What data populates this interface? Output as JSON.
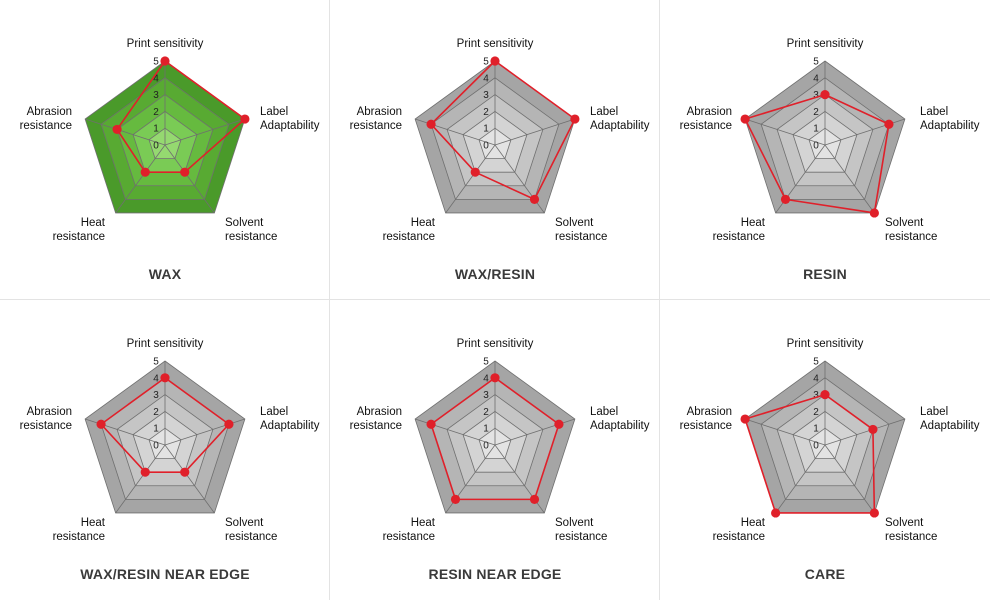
{
  "chart_data": [
    {
      "type": "radar",
      "title": "WAX",
      "axes": [
        "Print sensitivity",
        "Label Adaptability",
        "Solvent resistance",
        "Heat resistance",
        "Abrasion resistance"
      ],
      "ticks": [
        "0",
        "1",
        "2",
        "3",
        "4",
        "5"
      ],
      "rmax": 5,
      "values": [
        5,
        5,
        2,
        2,
        3
      ],
      "fill_colors": [
        "#4a9a2a",
        "#58aa32",
        "#66ba3f",
        "#7acb55",
        "#95d970",
        "#b8e891"
      ],
      "series_color": "#e0202a"
    },
    {
      "type": "radar",
      "title": "WAX/RESIN",
      "axes": [
        "Print sensitivity",
        "Label Adaptability",
        "Solvent resistance",
        "Heat resistance",
        "Abrasion resistance"
      ],
      "ticks": [
        "0",
        "1",
        "2",
        "3",
        "4",
        "5"
      ],
      "rmax": 5,
      "values": [
        5,
        5,
        4,
        2,
        4
      ],
      "fill_colors": [
        "#a5a5a5",
        "#b5b5b5",
        "#c5c5c5",
        "#d4d4d4",
        "#e3e3e3",
        "#f2f2f2"
      ],
      "series_color": "#e0202a"
    },
    {
      "type": "radar",
      "title": "RESIN",
      "axes": [
        "Print sensitivity",
        "Label Adaptability",
        "Solvent resistance",
        "Heat resistance",
        "Abrasion resistance"
      ],
      "ticks": [
        "0",
        "1",
        "2",
        "3",
        "4",
        "5"
      ],
      "rmax": 5,
      "values": [
        3,
        4,
        5,
        4,
        5
      ],
      "fill_colors": [
        "#a5a5a5",
        "#b5b5b5",
        "#c5c5c5",
        "#d4d4d4",
        "#e3e3e3",
        "#f2f2f2"
      ],
      "series_color": "#e0202a"
    },
    {
      "type": "radar",
      "title": "WAX/RESIN NEAR EDGE",
      "axes": [
        "Print sensitivity",
        "Label Adaptability",
        "Solvent resistance",
        "Heat resistance",
        "Abrasion resistance"
      ],
      "ticks": [
        "0",
        "1",
        "2",
        "3",
        "4",
        "5"
      ],
      "rmax": 5,
      "values": [
        4,
        4,
        2,
        2,
        4
      ],
      "fill_colors": [
        "#a5a5a5",
        "#b5b5b5",
        "#c5c5c5",
        "#d4d4d4",
        "#e3e3e3",
        "#f2f2f2"
      ],
      "series_color": "#e0202a"
    },
    {
      "type": "radar",
      "title": "RESIN NEAR EDGE",
      "axes": [
        "Print sensitivity",
        "Label Adaptability",
        "Solvent resistance",
        "Heat resistance",
        "Abrasion resistance"
      ],
      "ticks": [
        "0",
        "1",
        "2",
        "3",
        "4",
        "5"
      ],
      "rmax": 5,
      "values": [
        4,
        4,
        4,
        4,
        4
      ],
      "fill_colors": [
        "#a5a5a5",
        "#b5b5b5",
        "#c5c5c5",
        "#d4d4d4",
        "#e3e3e3",
        "#f2f2f2"
      ],
      "series_color": "#e0202a"
    },
    {
      "type": "radar",
      "title": "CARE",
      "axes": [
        "Print sensitivity",
        "Label Adaptability",
        "Solvent resistance",
        "Heat resistance",
        "Abrasion resistance"
      ],
      "ticks": [
        "0",
        "1",
        "2",
        "3",
        "4",
        "5"
      ],
      "rmax": 5,
      "values": [
        3,
        3,
        5,
        5,
        5
      ],
      "fill_colors": [
        "#a5a5a5",
        "#b5b5b5",
        "#c5c5c5",
        "#d4d4d4",
        "#e3e3e3",
        "#f2f2f2"
      ],
      "series_color": "#e0202a"
    }
  ]
}
